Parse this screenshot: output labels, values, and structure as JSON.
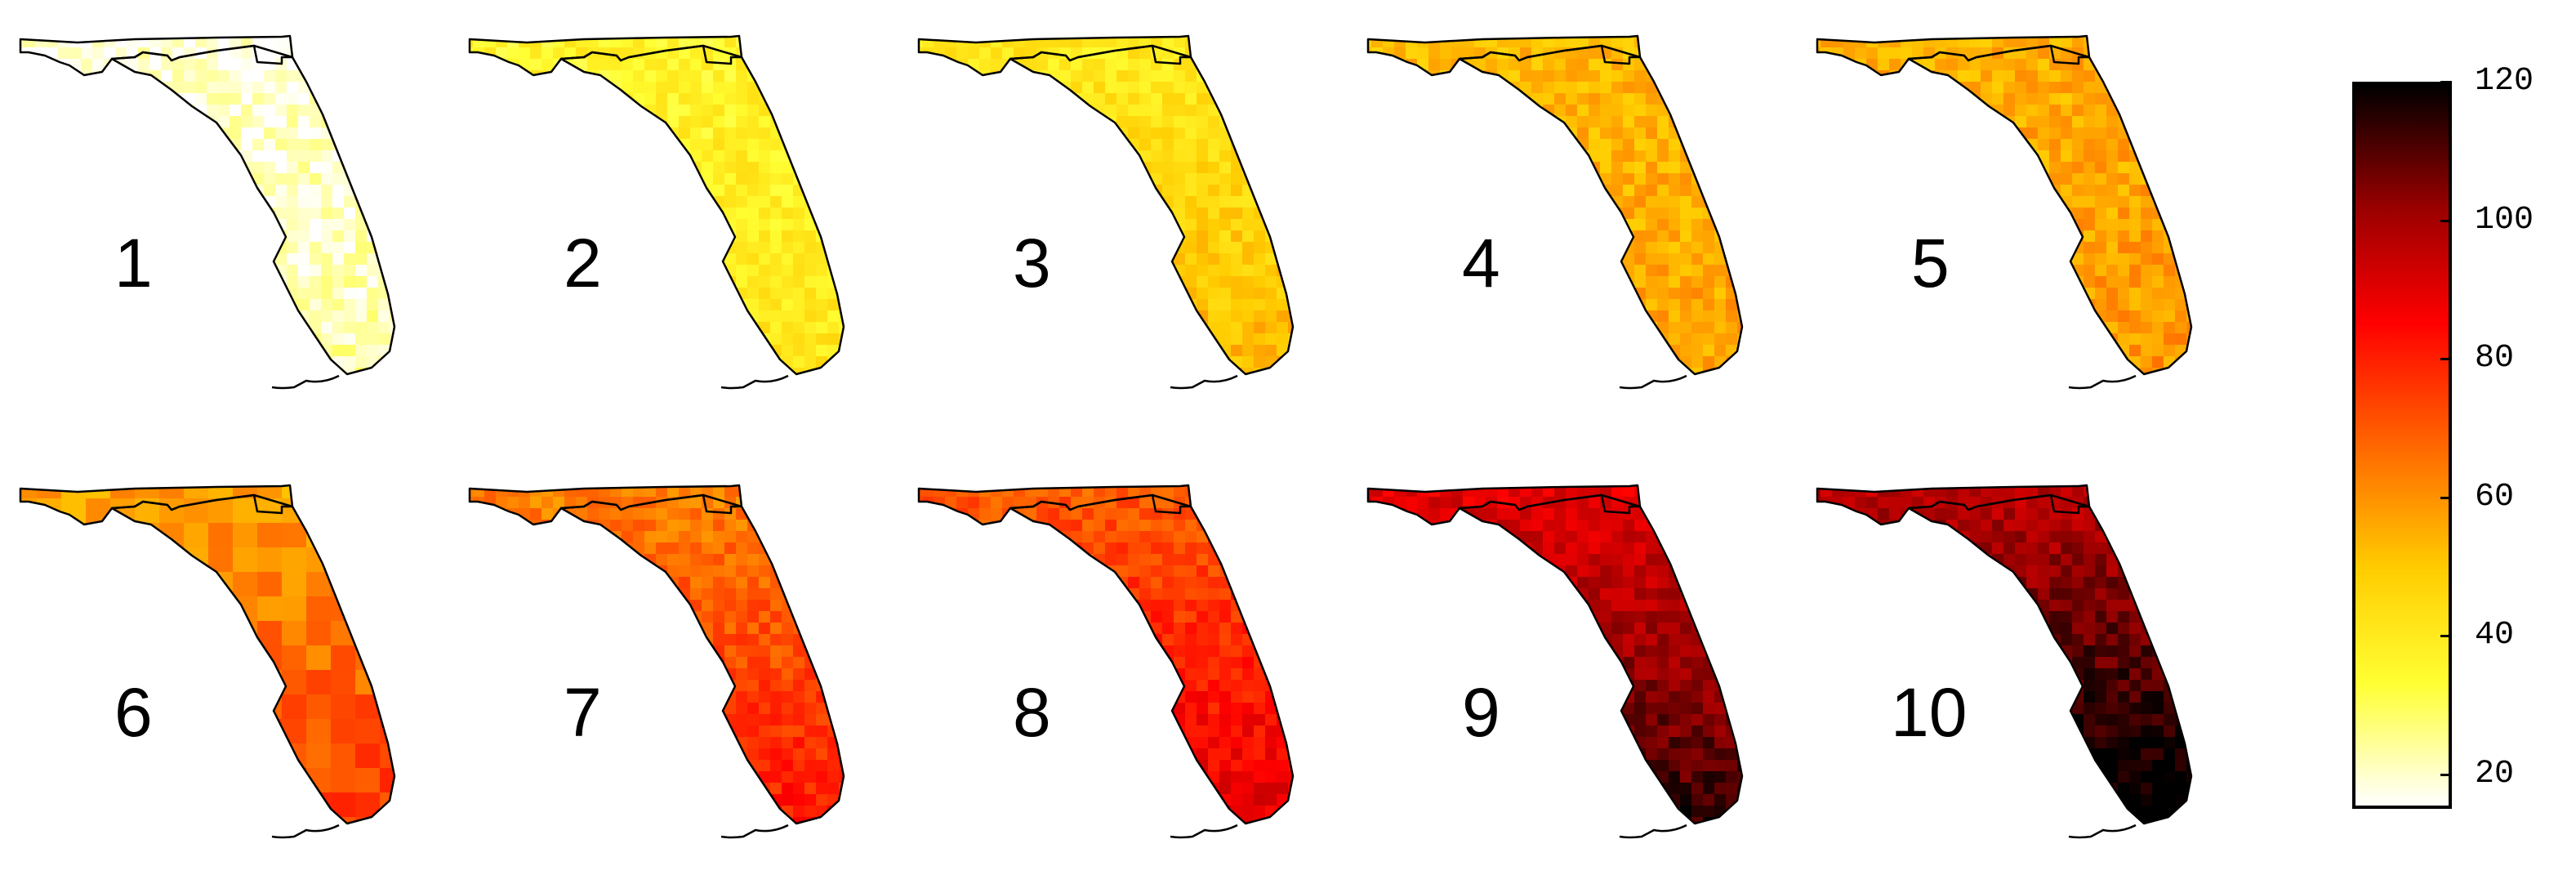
{
  "figure": {
    "type": "small-multiple choropleth maps",
    "region": "Florida",
    "panels": [
      {
        "label": "1",
        "intensity": 0.05,
        "hotspots": []
      },
      {
        "label": "2",
        "intensity": 0.22,
        "hotspots": []
      },
      {
        "label": "3",
        "intensity": 0.28,
        "hotspots": [
          "southwest coast",
          "south tip"
        ]
      },
      {
        "label": "4",
        "intensity": 0.38,
        "hotspots": []
      },
      {
        "label": "5",
        "intensity": 0.4,
        "hotspots": []
      },
      {
        "label": "6",
        "intensity": 0.45,
        "hotspots": [
          "southwest coast"
        ]
      },
      {
        "label": "7",
        "intensity": 0.5,
        "hotspots": [
          "central peninsula"
        ]
      },
      {
        "label": "8",
        "intensity": 0.56,
        "hotspots": [
          "central peninsula",
          "south tip"
        ]
      },
      {
        "label": "9",
        "intensity": 0.75,
        "hotspots": [
          "southern peninsula"
        ]
      },
      {
        "label": "10",
        "intensity": 0.82,
        "hotspots": [
          "southern peninsula"
        ]
      }
    ]
  },
  "colorbar": {
    "min": 15,
    "max": 120,
    "ticks": [
      "20",
      "40",
      "60",
      "80",
      "100",
      "120"
    ],
    "colormap": [
      "#ffffff",
      "#ffff33",
      "#ffcc00",
      "#ff6600",
      "#ff0000",
      "#990000",
      "#000000"
    ]
  }
}
